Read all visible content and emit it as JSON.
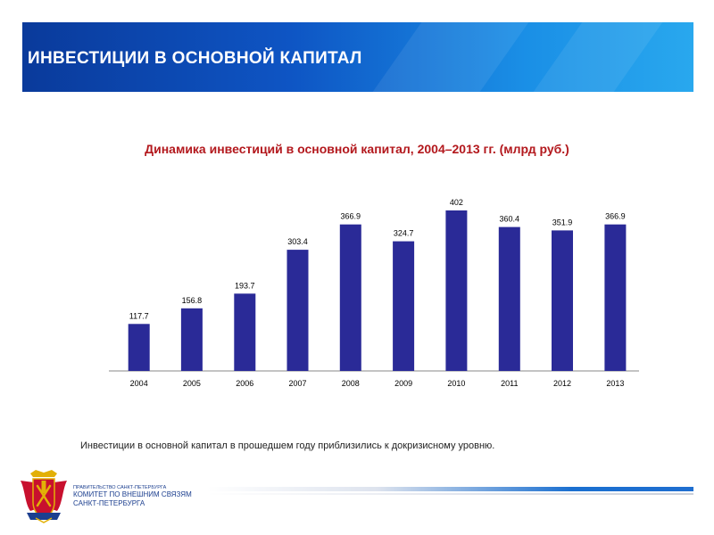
{
  "header": {
    "title": "ИНВЕСТИЦИИ В ОСНОВНОЙ КАПИТАЛ"
  },
  "chart_data": {
    "type": "bar",
    "title": "Динамика инвестиций в основной капитал,  2004–2013 гг. (млрд руб.)",
    "categories": [
      "2004",
      "2005",
      "2006",
      "2007",
      "2008",
      "2009",
      "2010",
      "2011",
      "2012",
      "2013"
    ],
    "values": [
      117.7,
      156.8,
      193.7,
      303.4,
      366.9,
      324.7,
      402,
      360.4,
      351.9,
      366.9
    ],
    "value_labels": [
      "117.7",
      "156.8",
      "193.7",
      "303.4",
      "366.9",
      "324.7",
      "402",
      "360.4",
      "351.9",
      "366.9"
    ],
    "ylim": [
      0,
      402
    ],
    "grid": false,
    "legend": "none",
    "bar_color": "#2a2a97"
  },
  "note": "Инвестиции в основной капитал в прошедшем году приблизились к докризисному уровню.",
  "footer": {
    "line1": "ПРАВИТЕЛЬСТВО САНКТ-ПЕТЕРБУРГА",
    "line2": "КОМИТЕТ ПО ВНЕШНИМ СВЯЗЯМ",
    "line3": "САНКТ-ПЕТЕРБУРГА"
  },
  "logo": {
    "icon": "saint-petersburg-coat-of-arms",
    "colors": [
      "#c8102e",
      "#e2b007",
      "#1c3f8f"
    ]
  }
}
